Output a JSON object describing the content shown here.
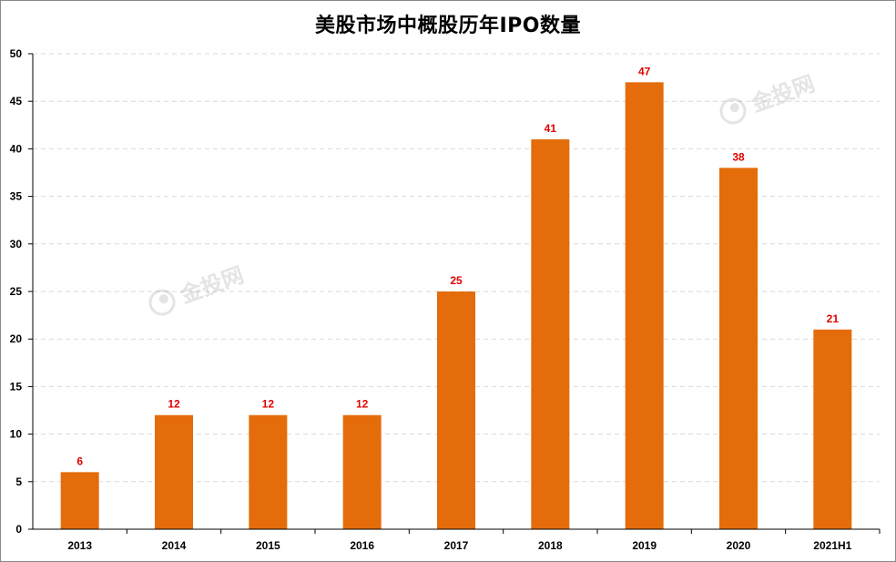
{
  "chart_data": {
    "type": "bar",
    "title": "美股市场中概股历年IPO数量",
    "categories": [
      "2013",
      "2014",
      "2015",
      "2016",
      "2017",
      "2018",
      "2019",
      "2020",
      "2021H1"
    ],
    "values": [
      6,
      12,
      12,
      12,
      25,
      41,
      47,
      38,
      21
    ],
    "xlabel": "",
    "ylabel": "",
    "ylim": [
      0,
      50
    ],
    "yticks": [
      0,
      5,
      10,
      15,
      20,
      25,
      30,
      35,
      40,
      45,
      50
    ],
    "grid": true,
    "legend": "none",
    "bar_color": "#e46c0a",
    "data_label_color": "#e00000",
    "grid_color": "#d9d9d9"
  },
  "watermark": {
    "text": "金投网"
  }
}
